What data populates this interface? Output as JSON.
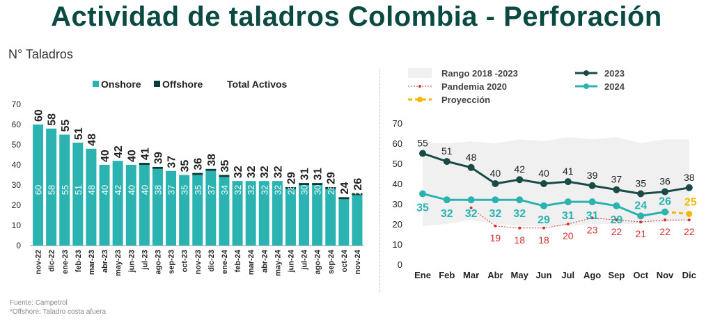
{
  "title": "Actividad de taladros Colombia - Perforación",
  "left_ylabel": "N° Taladros",
  "source": "Fuente: Campetrol",
  "note": "*Offshore: Taladro costa afuera",
  "colors": {
    "onshore": "#2bb3b1",
    "offshore": "#0d3b36",
    "y2023": "#1a4a45",
    "y2024": "#2bb3b1",
    "pandemia": "#d32f2f",
    "proyeccion": "#f5b800",
    "rango": "#f0f0f0",
    "title": "#0b4a43"
  },
  "chart_data": [
    {
      "type": "bar",
      "stacked": true,
      "legend": [
        "Onshore",
        "Offshore",
        "Total Activos"
      ],
      "legend_position": "top",
      "ylim": [
        0,
        70
      ],
      "yticks": [
        0,
        10,
        20,
        30,
        40,
        50,
        60,
        70
      ],
      "categories": [
        "nov-22",
        "dic-22",
        "ene-23",
        "feb-23",
        "mar-23",
        "abr-23",
        "may-23",
        "jun-23",
        "jul-23",
        "ago-23",
        "sep-23",
        "oct-23",
        "nov-23",
        "dic-23",
        "ene-24",
        "feb-24",
        "mar-24",
        "abr-24",
        "may-24",
        "jun-24",
        "jul-24",
        "ago-24",
        "sep-24",
        "oct-24",
        "nov-24"
      ],
      "series": [
        {
          "name": "Onshore",
          "values": [
            60,
            58,
            55,
            51,
            48,
            40,
            42,
            40,
            40,
            38,
            37,
            35,
            35,
            37,
            34,
            32,
            32,
            32,
            32,
            28,
            30,
            30,
            28,
            23,
            25
          ]
        },
        {
          "name": "Offshore",
          "values": [
            0,
            0,
            0,
            0,
            0,
            0,
            0,
            0,
            1,
            1,
            0,
            0,
            1,
            1,
            1,
            0,
            0,
            0,
            0,
            1,
            1,
            1,
            1,
            1,
            1
          ]
        }
      ],
      "totals": [
        60,
        58,
        55,
        51,
        48,
        40,
        42,
        40,
        41,
        39,
        37,
        35,
        36,
        38,
        35,
        32,
        32,
        32,
        32,
        29,
        31,
        31,
        29,
        24,
        26
      ]
    },
    {
      "type": "line",
      "ylim": [
        0,
        70
      ],
      "yticks": [
        0,
        10,
        20,
        30,
        40,
        50,
        60,
        70
      ],
      "categories": [
        "Ene",
        "Feb",
        "Mar",
        "Abr",
        "May",
        "Jun",
        "Jul",
        "Ago",
        "Sep",
        "Oct",
        "Nov",
        "Dic"
      ],
      "legend": [
        "Rango 2018 -2023",
        "2023",
        "Pandemia 2020",
        "2024",
        "Proyección"
      ],
      "rango_2018_2023": {
        "name": "Rango 2018 -2023",
        "low": [
          19,
          20,
          22,
          20,
          19,
          19,
          19,
          20,
          20,
          20,
          21,
          22
        ],
        "high": [
          60,
          60,
          61,
          60,
          62,
          61,
          63,
          62,
          63,
          60,
          62,
          62
        ]
      },
      "series": [
        {
          "name": "2023",
          "values": [
            55,
            51,
            48,
            40,
            42,
            40,
            41,
            39,
            37,
            35,
            36,
            38
          ]
        },
        {
          "name": "Pandemia 2020",
          "values": [
            null,
            null,
            28,
            19,
            18,
            18,
            20,
            23,
            22,
            21,
            22,
            22
          ],
          "labels": [
            null,
            null,
            null,
            19,
            18,
            18,
            20,
            23,
            22,
            21,
            22,
            22
          ]
        },
        {
          "name": "2024",
          "values": [
            35,
            32,
            32,
            32,
            32,
            29,
            31,
            31,
            29,
            24,
            26,
            null
          ],
          "labels": [
            35,
            32,
            32,
            32,
            32,
            29,
            31,
            31,
            29,
            24,
            26,
            null
          ]
        },
        {
          "name": "Proyección",
          "values": [
            null,
            null,
            null,
            null,
            null,
            null,
            null,
            null,
            null,
            null,
            26,
            25
          ],
          "labels": [
            null,
            null,
            null,
            null,
            null,
            null,
            null,
            null,
            null,
            null,
            null,
            25
          ]
        }
      ]
    }
  ]
}
